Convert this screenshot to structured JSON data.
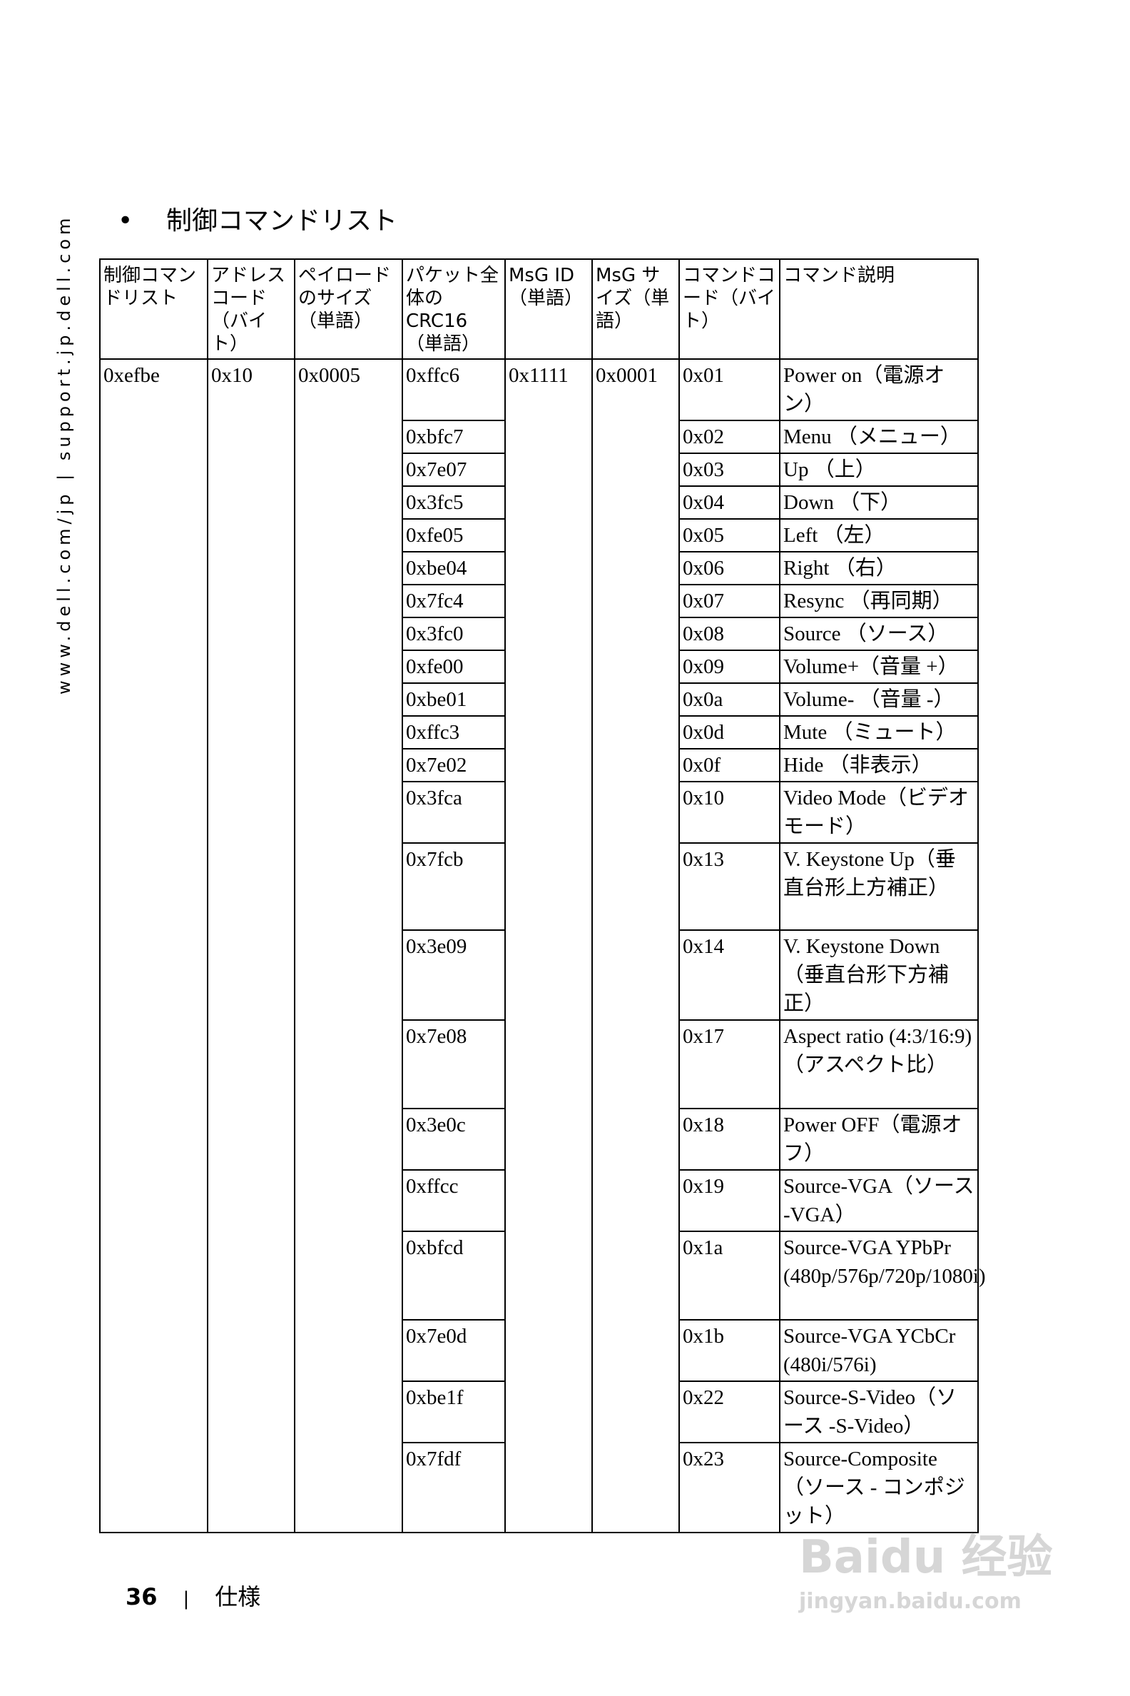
{
  "side_text": "www.dell.com/jp | support.jp.dell.com",
  "title": "制御コマンドリスト",
  "bullet": "•",
  "headers": [
    "制御コマンドリスト",
    "アドレスコード（バイト）",
    "ペイロードのサイズ（単語）",
    "パケット全体のCRC16（単語）",
    "MsG ID（単語）",
    "MsG サイズ（単語）",
    "コマンドコード（バイト）",
    "コマンド説明"
  ],
  "shared": {
    "control_list": "0xefbe",
    "address_code": "0x10",
    "payload_size": "0x0005",
    "msg_id": "0x1111",
    "msg_size": "0x0001"
  },
  "rows": [
    {
      "crc": "0xffc6",
      "code": "0x01",
      "desc": "Power on（電源オン）"
    },
    {
      "crc": "0xbfc7",
      "code": "0x02",
      "desc": "Menu （メニュー）"
    },
    {
      "crc": "0x7e07",
      "code": "0x03",
      "desc": "Up （上）"
    },
    {
      "crc": "0x3fc5",
      "code": "0x04",
      "desc": "Down （下）"
    },
    {
      "crc": "0xfe05",
      "code": "0x05",
      "desc": "Left （左）"
    },
    {
      "crc": "0xbe04",
      "code": "0x06",
      "desc": "Right （右）"
    },
    {
      "crc": "0x7fc4",
      "code": "0x07",
      "desc": "Resync （再同期）"
    },
    {
      "crc": "0x3fc0",
      "code": "0x08",
      "desc": "Source （ソース）"
    },
    {
      "crc": "0xfe00",
      "code": "0x09",
      "desc": "Volume+（音量 +）"
    },
    {
      "crc": "0xbe01",
      "code": "0x0a",
      "desc": "Volume- （音量 -）"
    },
    {
      "crc": "0xffc3",
      "code": "0x0d",
      "desc": "Mute （ミュート）"
    },
    {
      "crc": "0x7e02",
      "code": "0x0f",
      "desc": "Hide （非表示）"
    },
    {
      "crc": "0x3fca",
      "code": "0x10",
      "desc": "Video Mode（ビデオモード）"
    },
    {
      "crc": "0x7fcb",
      "code": "0x13",
      "desc": "V. Keystone Up（垂直台形上方補正）"
    },
    {
      "crc": "0x3e09",
      "code": "0x14",
      "desc": "V. Keystone Down（垂直台形下方補正）"
    },
    {
      "crc": "0x7e08",
      "code": "0x17",
      "desc": "Aspect ratio (4:3/16:9)（アスペクト比）"
    },
    {
      "crc": "0x3e0c",
      "code": "0x18",
      "desc": "Power OFF（電源オフ）"
    },
    {
      "crc": "0xffcc",
      "code": "0x19",
      "desc": "Source-VGA（ソース -VGA）"
    },
    {
      "crc": "0xbfcd",
      "code": "0x1a",
      "desc": "Source-VGA YPbPr (480p/576p/720p/1080i)"
    },
    {
      "crc": "0x7e0d",
      "code": "0x1b",
      "desc": "Source-VGA YCbCr (480i/576i)"
    },
    {
      "crc": "0xbe1f",
      "code": "0x22",
      "desc": "Source-S-Video（ソース -S-Video）"
    },
    {
      "crc": "0x7fdf",
      "code": "0x23",
      "desc": "Source-Composite（ソース - コンポジット）"
    }
  ],
  "footer": {
    "page": "36",
    "separator": "|",
    "section": "仕様"
  },
  "watermark": {
    "logo": "Baidu 经验",
    "url": "jingyan.baidu.com"
  }
}
